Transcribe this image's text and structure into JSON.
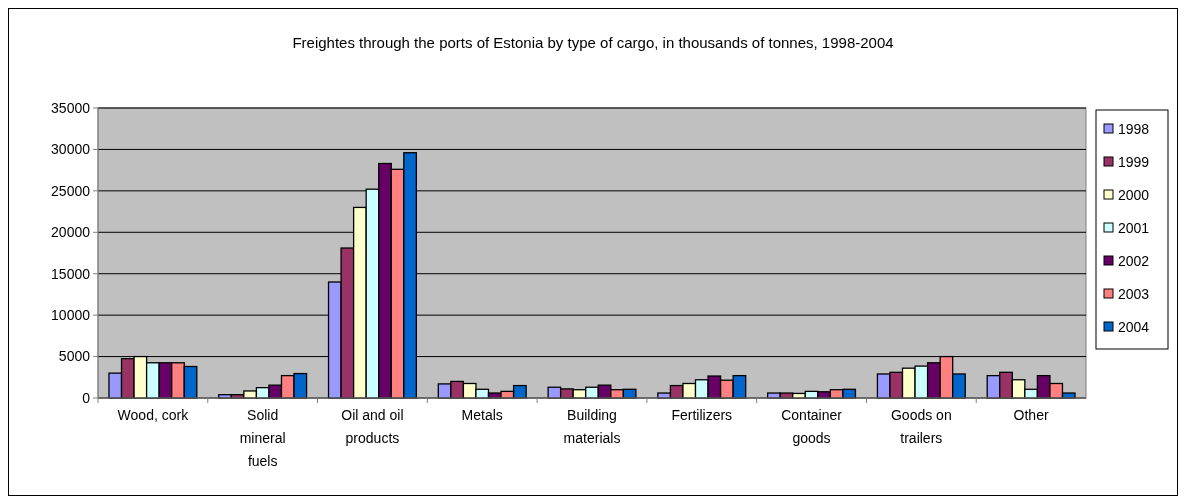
{
  "chart_data": {
    "type": "bar",
    "title": "Freightes through the ports of Estonia by type of cargo, in thousands of tonnes, 1998-2004",
    "categories": [
      "Wood, cork",
      "Solid mineral fuels",
      "Oil and oil products",
      "Metals",
      "Building materials",
      "Fertilizers",
      "Container goods",
      "Goods on trailers",
      "Other"
    ],
    "series": [
      {
        "name": "1998",
        "color": "#9999ff",
        "values": [
          3000,
          400,
          14000,
          1700,
          1300,
          600,
          600,
          2900,
          2700
        ]
      },
      {
        "name": "1999",
        "color": "#993366",
        "values": [
          4750,
          400,
          18100,
          2000,
          1100,
          1500,
          600,
          3100,
          3100
        ]
      },
      {
        "name": "2000",
        "color": "#ffffcc",
        "values": [
          5000,
          850,
          23000,
          1750,
          1000,
          1750,
          550,
          3600,
          2200
        ]
      },
      {
        "name": "2001",
        "color": "#ccffff",
        "values": [
          4250,
          1250,
          25200,
          1050,
          1300,
          2200,
          800,
          3850,
          1050
        ]
      },
      {
        "name": "2002",
        "color": "#660066",
        "values": [
          4250,
          1550,
          28300,
          600,
          1550,
          2650,
          750,
          4250,
          2700
        ]
      },
      {
        "name": "2003",
        "color": "#ff8080",
        "values": [
          4250,
          2700,
          27600,
          800,
          1000,
          2150,
          1000,
          5000,
          1750
        ]
      },
      {
        "name": "2004",
        "color": "#0066cc",
        "values": [
          3800,
          2950,
          29600,
          1500,
          1050,
          2700,
          1050,
          2900,
          600
        ]
      }
    ],
    "ylim": [
      0,
      35000
    ],
    "yticks": [
      0,
      5000,
      10000,
      15000,
      20000,
      25000,
      30000,
      35000
    ],
    "grid": "y",
    "legend": "right"
  }
}
